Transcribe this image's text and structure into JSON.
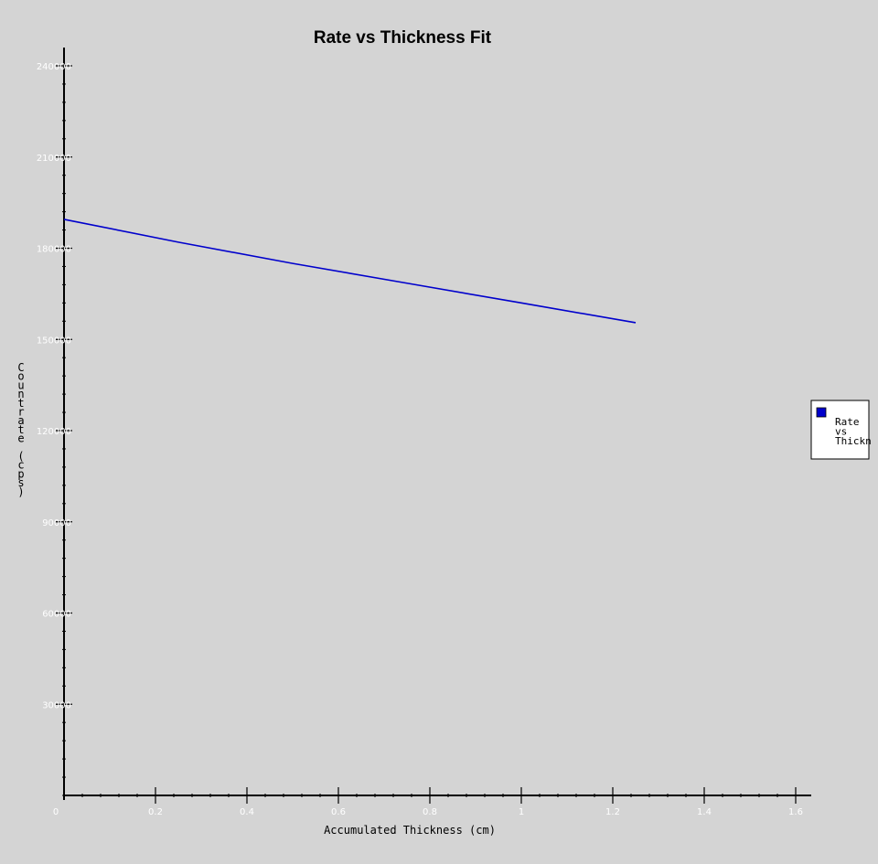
{
  "chart_data": {
    "type": "line",
    "title": "Rate vs Thickness Fit",
    "xlabel": "Accumulated Thickness (cm)",
    "ylabel": "Countrate (cps)",
    "xlim": [
      0,
      1.6
    ],
    "ylim": [
      0,
      240000
    ],
    "x_ticks": [
      0,
      0.2,
      0.4,
      0.6,
      0.8,
      1,
      1.2,
      1.4,
      1.6
    ],
    "x_tick_labels": [
      "0",
      "0.2",
      "0.4",
      "0.6",
      "0.8",
      "1",
      "1.2",
      "1.4",
      "1.6"
    ],
    "y_ticks": [
      30000,
      60000,
      90000,
      120000,
      150000,
      180000,
      210000,
      240000
    ],
    "y_tick_labels": [
      "30000",
      "60000",
      "90000",
      "120000",
      "150000",
      "180000",
      "210000",
      "240000"
    ],
    "series": [
      {
        "name": "Rate vs Thickness Fit",
        "color": "#0000cc",
        "x": [
          0,
          0.25,
          0.5,
          0.75,
          1.0,
          1.25
        ],
        "y": [
          189500,
          182000,
          175000,
          168500,
          162000,
          155500
        ]
      }
    ],
    "legend": {
      "placement": "right",
      "lines": [
        "Rate",
        "vs",
        "Thickn"
      ]
    },
    "grid": false,
    "colors": {
      "background": "#d4d4d4",
      "axis": "#000000",
      "tick_label": "#ffffff",
      "series": "#0000cc"
    }
  }
}
